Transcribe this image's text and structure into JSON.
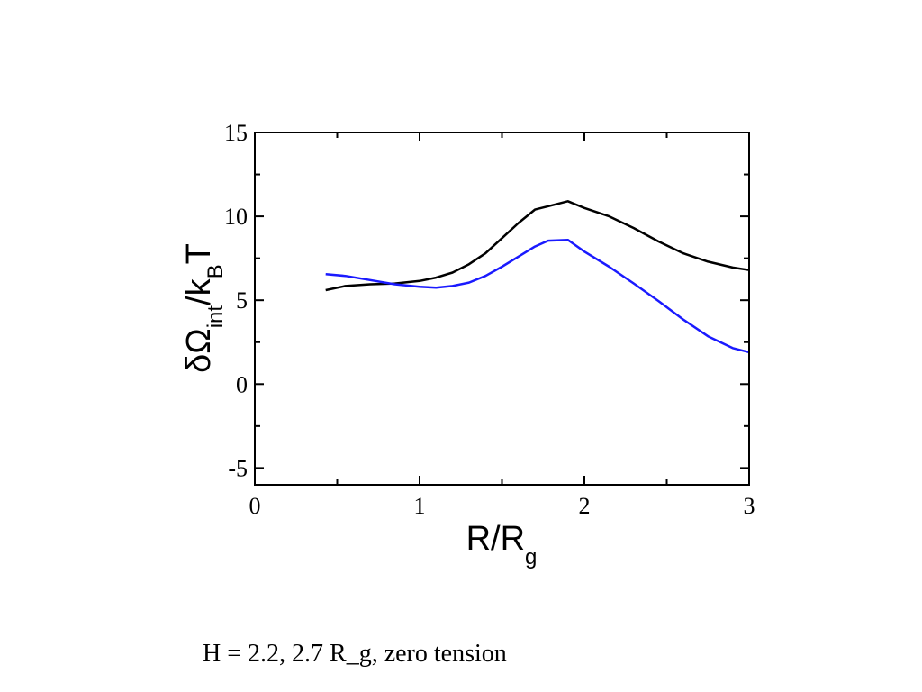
{
  "chart_data": {
    "type": "line",
    "xlabel": {
      "main": "R/R",
      "sub": "g"
    },
    "ylabel": {
      "p1": "δΩ",
      "sub1": "int",
      "p2": "/k",
      "sub2": "B",
      "p3": "T"
    },
    "xlim": [
      0,
      3
    ],
    "ylim": [
      -6,
      15
    ],
    "xticks": [
      0,
      1,
      2,
      3
    ],
    "yticks": [
      -5,
      0,
      5,
      10,
      15
    ],
    "grid": false,
    "series": [
      {
        "color": "#000000",
        "x": [
          0.43,
          0.55,
          0.7,
          0.85,
          1.0,
          1.1,
          1.2,
          1.3,
          1.4,
          1.5,
          1.6,
          1.7,
          1.78,
          1.9,
          2.0,
          2.15,
          2.3,
          2.45,
          2.6,
          2.75,
          2.9,
          3.0
        ],
        "y": [
          5.6,
          5.85,
          5.95,
          6.0,
          6.15,
          6.35,
          6.65,
          7.15,
          7.8,
          8.7,
          9.6,
          10.4,
          10.6,
          10.9,
          10.5,
          10.0,
          9.3,
          8.5,
          7.8,
          7.3,
          6.95,
          6.8
        ]
      },
      {
        "color": "#1a1aff",
        "x": [
          0.43,
          0.55,
          0.7,
          0.85,
          1.0,
          1.1,
          1.2,
          1.3,
          1.4,
          1.5,
          1.6,
          1.7,
          1.78,
          1.9,
          2.0,
          2.15,
          2.3,
          2.45,
          2.6,
          2.75,
          2.9,
          3.0
        ],
        "y": [
          6.55,
          6.45,
          6.2,
          5.95,
          5.8,
          5.75,
          5.85,
          6.05,
          6.45,
          7.0,
          7.6,
          8.2,
          8.55,
          8.6,
          7.9,
          7.0,
          6.0,
          4.95,
          3.85,
          2.85,
          2.15,
          1.9
        ]
      }
    ]
  },
  "caption": "H = 2.2, 2.7 R_g, zero tension"
}
